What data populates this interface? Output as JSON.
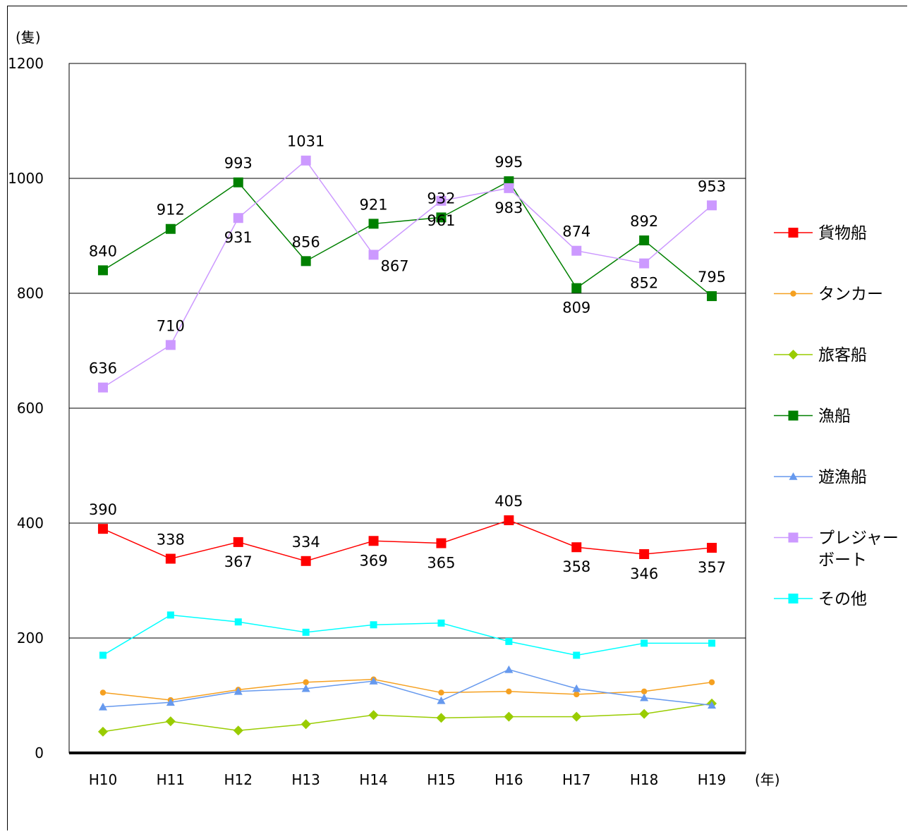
{
  "chart_data": {
    "type": "line",
    "y_unit": "(隻)",
    "x_unit": "(年)",
    "categories": [
      "H10",
      "H11",
      "H12",
      "H13",
      "H14",
      "H15",
      "H16",
      "H17",
      "H18",
      "H19"
    ],
    "ylim": [
      0,
      1200
    ],
    "yticks": [
      0,
      200,
      400,
      600,
      800,
      1000,
      1200
    ],
    "grid": "horizontal",
    "legend_position": "right",
    "series": [
      {
        "name": "貨物船",
        "color": "#ff0000",
        "marker": "square",
        "values": [
          390,
          338,
          367,
          334,
          369,
          365,
          405,
          358,
          346,
          357
        ],
        "labels": [
          "390",
          "338",
          "367",
          "334",
          "369",
          "365",
          "405",
          "358",
          "346",
          "357"
        ],
        "label_pos": [
          "above",
          "above",
          "below",
          "above",
          "below",
          "below",
          "above",
          "below",
          "below",
          "below"
        ]
      },
      {
        "name": "タンカー",
        "color": "#f5a020",
        "marker": "circle",
        "values": [
          105,
          92,
          110,
          123,
          128,
          105,
          107,
          102,
          107,
          123
        ]
      },
      {
        "name": "旅客船",
        "color": "#99cc00",
        "marker": "diamond",
        "values": [
          37,
          55,
          39,
          50,
          66,
          61,
          63,
          63,
          68,
          86
        ]
      },
      {
        "name": "漁船",
        "color": "#008000",
        "marker": "square",
        "values": [
          840,
          912,
          993,
          856,
          921,
          932,
          995,
          809,
          892,
          795
        ],
        "labels": [
          "840",
          "912",
          "993",
          "856",
          "921",
          "932",
          "995",
          "809",
          "892",
          "795"
        ],
        "label_pos": [
          "above",
          "above",
          "above",
          "above",
          "above",
          "above",
          "above",
          "below",
          "above",
          "above"
        ]
      },
      {
        "name": "遊漁船",
        "color": "#6699ee",
        "marker": "triangle",
        "values": [
          80,
          88,
          107,
          112,
          125,
          91,
          145,
          112,
          96,
          83
        ]
      },
      {
        "name": "プレジャーボート",
        "legend_lines": [
          "プレジャー",
          "ボート"
        ],
        "color": "#cc99ff",
        "marker": "square",
        "values": [
          636,
          710,
          931,
          1031,
          867,
          961,
          983,
          874,
          852,
          953
        ],
        "labels": [
          "636",
          "710",
          "931",
          "1031",
          "867",
          "961",
          "983",
          "874",
          "852",
          "953"
        ],
        "label_pos": [
          "above",
          "above",
          "below",
          "above",
          "right",
          "below",
          "below",
          "above",
          "below",
          "above"
        ]
      },
      {
        "name": "その他",
        "color": "#00ffff",
        "marker": "square",
        "values": [
          170,
          240,
          228,
          210,
          223,
          226,
          194,
          170,
          191,
          191
        ]
      }
    ]
  }
}
